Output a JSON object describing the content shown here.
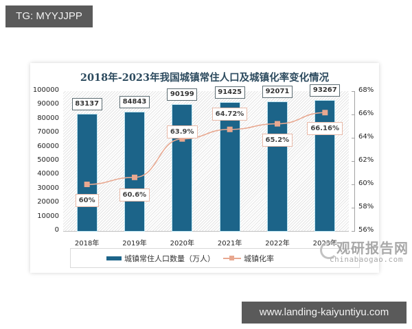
{
  "tags": {
    "top": "TG: MYYJJPP",
    "bottom": "www.landing-kaiyuntiyu.com"
  },
  "colors": {
    "bar": "#1c6489",
    "line": "#e8a890",
    "title": "#2c4a5e"
  },
  "chart_data": {
    "type": "bar",
    "title": "2018年-2023年我国城镇常住人口及城镇化率变化情况",
    "categories": [
      "2018年",
      "2019年",
      "2020年",
      "2021年",
      "2022年",
      "2023年"
    ],
    "series": [
      {
        "name": "城镇常住人口数量（万人）",
        "type": "bar",
        "axis": "left",
        "values": [
          83137,
          84843,
          90199,
          91425,
          92071,
          93267
        ],
        "labels": [
          "83137",
          "84843",
          "90199",
          "91425",
          "92071",
          "93267"
        ]
      },
      {
        "name": "城镇化率",
        "type": "line",
        "axis": "right",
        "values": [
          60,
          60.6,
          63.9,
          64.72,
          65.2,
          66.16
        ],
        "labels": [
          "60%",
          "60.6%",
          "63.9%",
          "64.72%",
          "65.2%",
          "66.16%"
        ]
      }
    ],
    "ylim_left": [
      0,
      100000
    ],
    "ylim_right": [
      56,
      68
    ],
    "yticks_left": [
      "100000",
      "90000",
      "80000",
      "70000",
      "60000",
      "50000",
      "40000",
      "30000",
      "20000",
      "10000",
      "0"
    ],
    "yticks_right": [
      "68%",
      "66%",
      "64%",
      "62%",
      "60%",
      "58%",
      "56%"
    ],
    "xlabel": "",
    "ylabel": "",
    "legend_position": "bottom",
    "grid": false
  },
  "watermark": {
    "cn": "观研报告网",
    "en": "chinabaogao.com"
  }
}
